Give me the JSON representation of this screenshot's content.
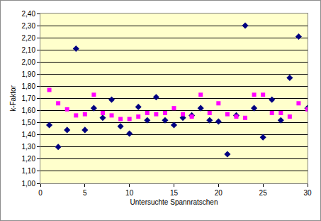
{
  "chart_data": {
    "type": "scatter",
    "x_label": "Untersuchte Spannratschen",
    "y_label": "k-Faktor",
    "x": [
      1,
      2,
      3,
      4,
      5,
      6,
      7,
      8,
      9,
      10,
      11,
      12,
      13,
      14,
      15,
      16,
      17,
      18,
      19,
      20,
      21,
      22,
      23,
      24,
      25,
      26,
      27,
      28,
      29,
      30
    ],
    "series": [
      {
        "color": "#000080",
        "marker": "diamond",
        "values": [
          1.48,
          1.3,
          1.44,
          2.11,
          1.44,
          1.62,
          1.54,
          1.69,
          1.47,
          1.41,
          1.63,
          1.52,
          1.71,
          1.52,
          1.48,
          1.54,
          1.56,
          1.62,
          1.52,
          1.51,
          1.24,
          1.56,
          2.3,
          1.62,
          1.38,
          1.69,
          1.52,
          1.87,
          2.21,
          1.62
        ]
      },
      {
        "color": "#ff00ff",
        "marker": "square",
        "values": [
          1.77,
          1.66,
          1.61,
          1.56,
          1.57,
          1.73,
          1.58,
          1.56,
          1.53,
          1.53,
          1.55,
          1.58,
          1.57,
          1.58,
          1.62,
          1.57,
          1.55,
          1.73,
          1.58,
          1.66,
          1.57,
          1.55,
          1.54,
          1.73,
          1.73,
          1.58,
          1.58,
          1.55,
          1.66,
          1.61
        ]
      }
    ],
    "xlim": [
      0,
      30
    ],
    "xticks": [
      0,
      5,
      10,
      15,
      20,
      25,
      30
    ],
    "ylim": [
      1.0,
      2.4
    ],
    "yticks": [
      {
        "value": 1.0,
        "label": "1,00"
      },
      {
        "value": 1.1,
        "label": "1,10"
      },
      {
        "value": 1.2,
        "label": "1,20"
      },
      {
        "value": 1.3,
        "label": "1,30"
      },
      {
        "value": 1.4,
        "label": "1,40"
      },
      {
        "value": 1.5,
        "label": "1,50"
      },
      {
        "value": 1.6,
        "label": "1,60"
      },
      {
        "value": 1.7,
        "label": "1,70"
      },
      {
        "value": 1.8,
        "label": "1,80"
      },
      {
        "value": 1.9,
        "label": "1,90"
      },
      {
        "value": 2.0,
        "label": "2,00"
      },
      {
        "value": 2.1,
        "label": "2,10"
      },
      {
        "value": 2.2,
        "label": "2,20"
      },
      {
        "value": 2.3,
        "label": "2,30"
      },
      {
        "value": 2.4,
        "label": "2,40"
      }
    ],
    "grid": true
  }
}
